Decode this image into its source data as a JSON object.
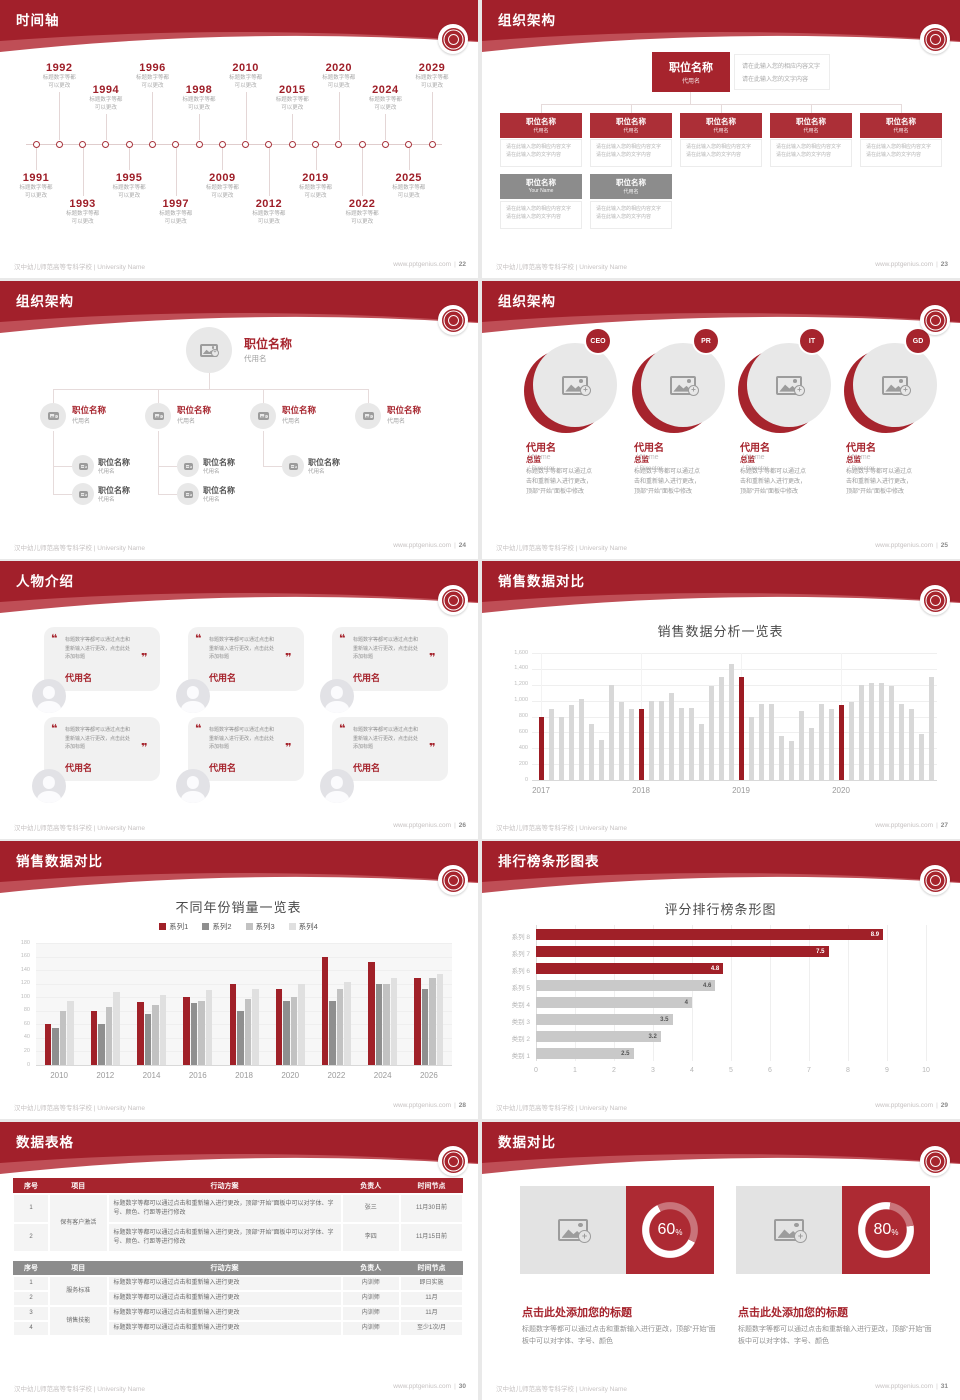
{
  "icons": {
    "open_quote": "❝",
    "close_quote": "❞",
    "plus": "+"
  },
  "footer": {
    "school": "汉中幼儿师范高等专科学校 | University Name",
    "site": "www.pptgenius.com",
    "sep": "|"
  },
  "s1": {
    "title": "时间轴",
    "page": "22",
    "caption": "标题数字等都可以更改",
    "items": [
      {
        "year": "1991",
        "side": "b",
        "tier": 1
      },
      {
        "year": "1992",
        "side": "t",
        "tier": 1
      },
      {
        "year": "1993",
        "side": "b",
        "tier": 2
      },
      {
        "year": "1994",
        "side": "t",
        "tier": 2
      },
      {
        "year": "1995",
        "side": "b",
        "tier": 1
      },
      {
        "year": "1996",
        "side": "t",
        "tier": 1
      },
      {
        "year": "1997",
        "side": "b",
        "tier": 2
      },
      {
        "year": "1998",
        "side": "t",
        "tier": 2
      },
      {
        "year": "2009",
        "side": "b",
        "tier": 1
      },
      {
        "year": "2010",
        "side": "t",
        "tier": 1
      },
      {
        "year": "2012",
        "side": "b",
        "tier": 2
      },
      {
        "year": "2015",
        "side": "t",
        "tier": 2
      },
      {
        "year": "2019",
        "side": "b",
        "tier": 1
      },
      {
        "year": "2020",
        "side": "t",
        "tier": 1
      },
      {
        "year": "2022",
        "side": "b",
        "tier": 2
      },
      {
        "year": "2024",
        "side": "t",
        "tier": 2
      },
      {
        "year": "2025",
        "side": "b",
        "tier": 1
      },
      {
        "year": "2029",
        "side": "t",
        "tier": 1
      }
    ]
  },
  "s2": {
    "title": "组织架构",
    "page": "23",
    "role": "职位名称",
    "name": "代用名",
    "name_en": "Your Name",
    "desc1": "请在此输入您的相应内容文字",
    "desc2": "请在此输入您的文字内容"
  },
  "s3": {
    "title": "组织架构",
    "page": "24",
    "role": "职位名称",
    "name": "代用名",
    "l3_counts": [
      2,
      2,
      1
    ]
  },
  "s4": {
    "title": "组织架构",
    "page": "25",
    "tags": [
      "CEO",
      "PR",
      "IT",
      "GD"
    ],
    "name": "代用名",
    "name_en": "/ Name",
    "role": "总监",
    "role_en": "/ Director",
    "body": "标题数字等都可以通过点击和重新输入进行更改，顶部“开始”面板中修改"
  },
  "s5": {
    "title": "人物介绍",
    "page": "26",
    "quote": "标题数字等都可以通过点击和重新输入进行更改，点击此处添加标题",
    "name": "代用名"
  },
  "s6": {
    "title": "销售数据对比",
    "page": "27",
    "chart": {
      "type": "bar",
      "title": "销售数据分析一览表",
      "x_groups": [
        "2017",
        "2018",
        "2019",
        "2020"
      ],
      "y_ticks": [
        "0",
        "200",
        "400",
        "600",
        "800",
        "1,000",
        "1,200",
        "1,400",
        "1,600"
      ],
      "ylim": [
        0,
        1600
      ],
      "values": [
        790,
        900,
        800,
        950,
        1020,
        700,
        500,
        1200,
        980,
        890,
        890,
        990,
        1000,
        1100,
        910,
        910,
        700,
        1190,
        1300,
        1460,
        1300,
        800,
        960,
        960,
        560,
        490,
        870,
        660,
        960,
        890,
        950,
        980,
        1200,
        1220,
        1220,
        1180,
        960,
        890,
        580,
        1300
      ],
      "red_indices": [
        0,
        10,
        20,
        30
      ],
      "bar_color": "#d8d8d8",
      "highlight_color": "#9c1b23"
    }
  },
  "s7": {
    "title": "销售数据对比",
    "page": "28",
    "chart": {
      "type": "bar",
      "title": "不同年份销量一览表",
      "categories": [
        "2010",
        "2012",
        "2014",
        "2016",
        "2018",
        "2020",
        "2022",
        "2024",
        "2026"
      ],
      "ylim": [
        0,
        180
      ],
      "y_step": 20,
      "series": [
        {
          "name": "系列1",
          "color": "#a02028",
          "values": [
            60,
            80,
            93,
            100,
            120,
            112,
            160,
            152,
            128
          ]
        },
        {
          "name": "系列2",
          "color": "#8f8f8f",
          "values": [
            54,
            60,
            75,
            92,
            80,
            95,
            95,
            120,
            112
          ]
        },
        {
          "name": "系列3",
          "color": "#c2c2c2",
          "values": [
            80,
            86,
            88,
            95,
            97,
            100,
            112,
            120,
            128
          ]
        },
        {
          "name": "系列4",
          "color": "#e0e0e0",
          "values": [
            95,
            108,
            103,
            110,
            112,
            120,
            123,
            128,
            135
          ]
        }
      ]
    }
  },
  "s8": {
    "title": "排行榜条形图表",
    "page": "29",
    "chart": {
      "type": "bar-horizontal",
      "title": "评分排行榜条形图",
      "categories": [
        "系列 8",
        "系列 7",
        "系列 6",
        "系列 5",
        "类别 4",
        "类别 3",
        "类别 2",
        "类别 1"
      ],
      "values": [
        8.9,
        7.5,
        4.8,
        4.6,
        4,
        3.5,
        3.2,
        2.5
      ],
      "labels": [
        "8.9",
        "7.5",
        "4.8",
        "4.6",
        "4",
        "3.5",
        "3.2",
        "2.5"
      ],
      "red_count": 3,
      "xlim": [
        0,
        10
      ],
      "x_ticks": [
        "0",
        "1",
        "2",
        "3",
        "4",
        "5",
        "6",
        "7",
        "8",
        "9",
        "10"
      ],
      "bar_color": "#c9c9c9",
      "highlight_color": "#a02028"
    }
  },
  "s9": {
    "title": "数据表格",
    "page": "30",
    "headers": [
      "序号",
      "项目",
      "行动方案",
      "负责人",
      "时间节点"
    ],
    "t1": {
      "groups": [
        {
          "label": "保有客户激活",
          "rows": [
            {
              "no": "1",
              "action": "标题数字等都可以通过点击和重新输入进行更改，顶部“开始”面板中可以对字体、字号、颜色、行距等进行修改",
              "owner": "张三",
              "time": "11月30日前"
            },
            {
              "no": "2",
              "action": "标题数字等都可以通过点击和重新输入进行更改，顶部“开始”面板中可以对字体、字号、颜色、行距等进行修改",
              "owner": "李四",
              "time": "11月15日前"
            }
          ]
        }
      ]
    },
    "t2": {
      "groups": [
        {
          "label": "服务标准",
          "rows": [
            {
              "no": "1",
              "action": "标题数字等都可以通过点击和重新输入进行更改",
              "owner": "内训师",
              "time": "即日实施"
            },
            {
              "no": "2",
              "action": "标题数字等都可以通过点击和重新输入进行更改",
              "owner": "内训师",
              "time": "11月"
            }
          ]
        },
        {
          "label": "销售技能",
          "rows": [
            {
              "no": "3",
              "action": "标题数字等都可以通过点击和重新输入进行更改",
              "owner": "内训师",
              "time": "11月"
            },
            {
              "no": "4",
              "action": "标题数字等都可以通过点击和重新输入进行更改",
              "owner": "内训师",
              "time": "至少1次/月"
            }
          ]
        }
      ]
    }
  },
  "s10": {
    "title": "数据对比",
    "page": "31",
    "card_title": "点击此处添加您的标题",
    "card_body": "标题数字等都可以通过点击和重新输入进行更改，顶部“开始”面板中可以对字体、字号、颜色",
    "cards": [
      {
        "value": "60",
        "unit": "%",
        "pct": 60
      },
      {
        "value": "80",
        "unit": "%",
        "pct": 80
      }
    ]
  }
}
